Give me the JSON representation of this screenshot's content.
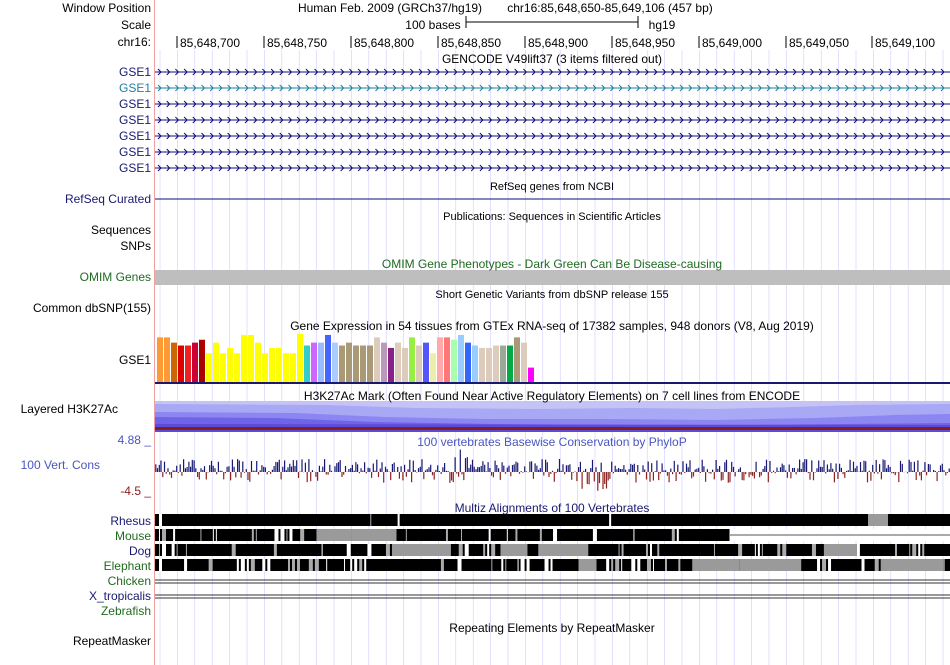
{
  "header": {
    "window_position_label": "Window Position",
    "scale_label": "Scale",
    "chrom_label": "chr16:",
    "assembly": "Human Feb. 2009 (GRCh37/hg19)",
    "position": "chr16:85,648,650-85,649,106 (457 bp)",
    "scale_text": "100 bases",
    "db_label": "hg19",
    "ruler_ticks": [
      "85,648,700",
      "85,648,750",
      "85,648,800",
      "85,648,850",
      "85,648,900",
      "85,648,950",
      "85,649,000",
      "85,649,050",
      "85,649,100"
    ]
  },
  "gencode": {
    "title": "GENCODE V49lift37 (3 items filtered out)",
    "items": [
      "GSE1",
      "GSE1",
      "GSE1",
      "GSE1",
      "GSE1",
      "GSE1",
      "GSE1"
    ],
    "colors": [
      "#0c0c78",
      "#1e7fa0",
      "#0c0c78",
      "#0c0c78",
      "#0c0c78",
      "#0c0c78",
      "#0c0c78"
    ]
  },
  "refseq": {
    "label": "RefSeq Curated",
    "title": "RefSeq genes from NCBI"
  },
  "publications": {
    "title": "Publications: Sequences in Scientific Articles",
    "label": "Sequences"
  },
  "snps_label": "SNPs",
  "omim": {
    "title": "OMIM Gene Phenotypes - Dark Green Can Be Disease-causing",
    "label": "OMIM Genes"
  },
  "dbsnp": {
    "title": "Short Genetic Variants from dbSNP release 155",
    "label": "Common dbSNP(155)"
  },
  "gtex": {
    "title": "Gene Expression in 54 tissues from GTEx RNA-seq of 17382 samples, 948 donors (V8, Aug 2019)",
    "label": "GSE1",
    "values": [
      0.93,
      0.93,
      0.82,
      0.76,
      0.76,
      0.82,
      0.88,
      0.6,
      0.82,
      0.6,
      0.71,
      0.6,
      0.98,
      0.98,
      0.82,
      0.6,
      0.71,
      0.71,
      0.6,
      0.6,
      1.0,
      0.76,
      0.82,
      0.82,
      0.98,
      0.82,
      0.76,
      0.82,
      0.76,
      0.76,
      0.76,
      0.93,
      0.82,
      0.71,
      0.82,
      0.71,
      0.93,
      0.76,
      0.82,
      0.6,
      0.93,
      0.93,
      0.88,
      0.98,
      0.82,
      0.76,
      0.71,
      0.71,
      0.76,
      0.76,
      0.76,
      0.93,
      0.82,
      0.3
    ],
    "colors": [
      "#ff9933",
      "#ff9933",
      "#cc6600",
      "#dd0000",
      "#ee2222",
      "#cc0033",
      "#aa0000",
      "#ffff00",
      "#ffff00",
      "#ffff00",
      "#ffff00",
      "#ffff00",
      "#ffff00",
      "#ffff00",
      "#ffff00",
      "#ffff00",
      "#ffff00",
      "#ffff00",
      "#ffff00",
      "#ffff00",
      "#ffff00",
      "#33cccc",
      "#cc66ff",
      "#99bbff",
      "#4466ff",
      "#aaccff",
      "#aa9977",
      "#aa9977",
      "#aa9977",
      "#aa9977",
      "#aa9977",
      "#ddccbb",
      "#bb99bb",
      "#882288",
      "#ddccbb",
      "#ddccbb",
      "#99ee44",
      "#ddccbb",
      "#5555ff",
      "#eeeeaa",
      "#ffaaaa",
      "#ff7777",
      "#aaffaa",
      "#99ccff",
      "#3366ff",
      "#99ccff",
      "#ddccbb",
      "#ddccbb",
      "#ddccbb",
      "#99aa99",
      "#00aa44",
      "#aa9977",
      "#ddccbb",
      "#ff00ff"
    ]
  },
  "h3k27ac": {
    "title": "H3K27Ac Mark (Often Found Near Active Regulatory Elements) on 7 cell lines from ENCODE",
    "label": "Layered H3K27Ac"
  },
  "phylop": {
    "title": "100 vertebrates Basewise Conservation by PhyloP",
    "label": "100 Vert. Cons",
    "max_label": "4.88 _",
    "min_label": "-4.5 _",
    "max": 4.88,
    "min": -4.5
  },
  "multiz": {
    "title": "Multiz Alignments of 100 Vertebrates",
    "species": [
      "Rhesus",
      "Mouse",
      "Dog",
      "Elephant",
      "Chicken",
      "X_tropicalis",
      "Zebrafish"
    ],
    "species_colors": [
      "#191970",
      "#1f6b1f",
      "#191970",
      "#1f6b1f",
      "#1f6b1f",
      "#191970",
      "#1f6b1f"
    ]
  },
  "repeatmasker": {
    "title": "Repeating Elements by RepeatMasker",
    "label": "RepeatMasker"
  }
}
